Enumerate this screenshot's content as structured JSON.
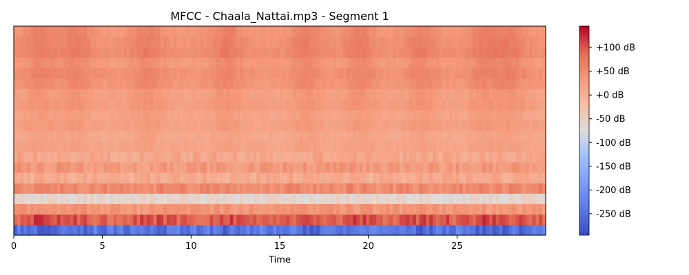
{
  "chart_data": {
    "type": "heatmap",
    "title": "MFCC - Chaala_Nattai.mp3 - Segment 1",
    "xlabel": "Time",
    "ylabel": "",
    "xlim": [
      0,
      30
    ],
    "x_ticks": [
      0,
      5,
      10,
      15,
      20,
      25
    ],
    "x_tick_labels": [
      "0",
      "5",
      "10",
      "15",
      "20",
      "25"
    ],
    "n_coefficients": 20,
    "colormap": "coolwarm",
    "colorbar": {
      "range": [
        -295,
        145
      ],
      "ticks": [
        100,
        50,
        0,
        -50,
        -100,
        -150,
        -200,
        -250
      ],
      "tick_labels": [
        "+100 dB",
        "+50 dB",
        "+0 dB",
        "-50 dB",
        "-100 dB",
        "-150 dB",
        "-200 dB",
        "-250 dB"
      ]
    },
    "coefficient_profile_db": [
      -235,
      95,
      40,
      -60,
      55,
      10,
      35,
      15,
      25,
      20,
      30,
      25,
      35,
      30,
      45,
      50,
      40,
      55,
      50,
      45
    ],
    "notes_coefficient_order": "index 0 = bottom row (lowest MFCC), index 19 = top row",
    "high_energy_times": [
      1.5,
      3.5,
      7.5,
      12.0,
      16.5,
      19.5,
      23.0,
      26.5,
      28.0
    ]
  }
}
